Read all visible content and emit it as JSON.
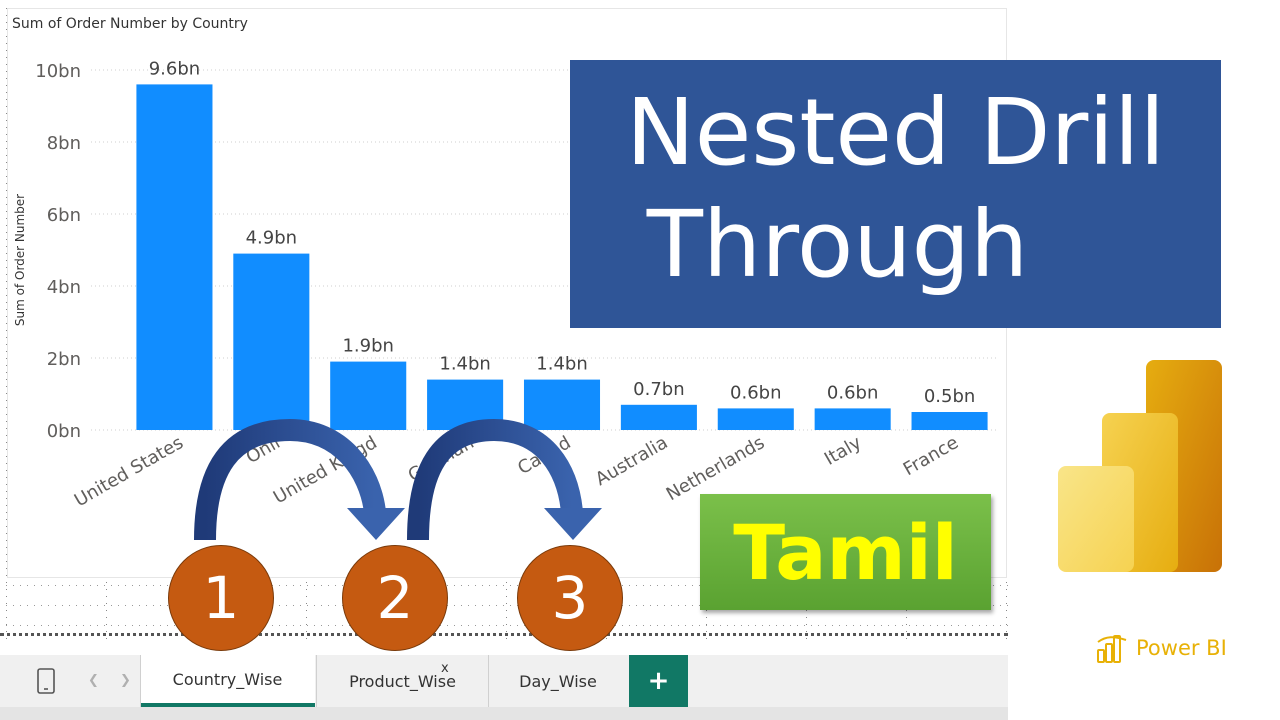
{
  "chart_data": {
    "type": "bar",
    "title": "Sum of Order Number by Country",
    "ylabel": "Sum of Order Number",
    "xlabel": "",
    "categories": [
      "United States",
      "Online",
      "United Kingdom",
      "Germany",
      "Canada",
      "Australia",
      "Netherlands",
      "Italy",
      "France"
    ],
    "tick_labels_visible": [
      "United States",
      "Onli",
      "United Kingd",
      "German",
      "Canad",
      "Australia",
      "Netherlands",
      "Italy",
      "France"
    ],
    "values": [
      9.6,
      4.9,
      1.9,
      1.4,
      1.4,
      0.7,
      0.6,
      0.6,
      0.5
    ],
    "value_labels": [
      "9.6bn",
      "4.9bn",
      "1.9bn",
      "1.4bn",
      "1.4bn",
      "0.7bn",
      "0.6bn",
      "0.6bn",
      "0.5bn"
    ],
    "y_ticks": [
      "0bn",
      "2bn",
      "4bn",
      "6bn",
      "8bn",
      "10bn"
    ],
    "ylim": [
      0,
      10
    ],
    "units": "bn",
    "grid": true,
    "bar_color": "#118dff"
  },
  "banner": {
    "line1": "Nested Drill",
    "line2": "Through",
    "color": "#2f5597"
  },
  "badge": {
    "text": "Tamil",
    "color": "#ffff00"
  },
  "steps": [
    "1",
    "2",
    "3"
  ],
  "tabs": {
    "items": [
      {
        "label": "Country_Wise",
        "active": true
      },
      {
        "label": "Product_Wise",
        "active": false
      },
      {
        "label": "Day_Wise",
        "active": false
      }
    ],
    "close_label": "x",
    "add_label": "+",
    "accent": "#117865"
  },
  "brand": {
    "name": "Power BI",
    "color": "#e8b106"
  },
  "icons": {
    "mobile": "mobile-layout-icon",
    "prev": "chevron-left-icon",
    "next": "chevron-right-icon"
  }
}
